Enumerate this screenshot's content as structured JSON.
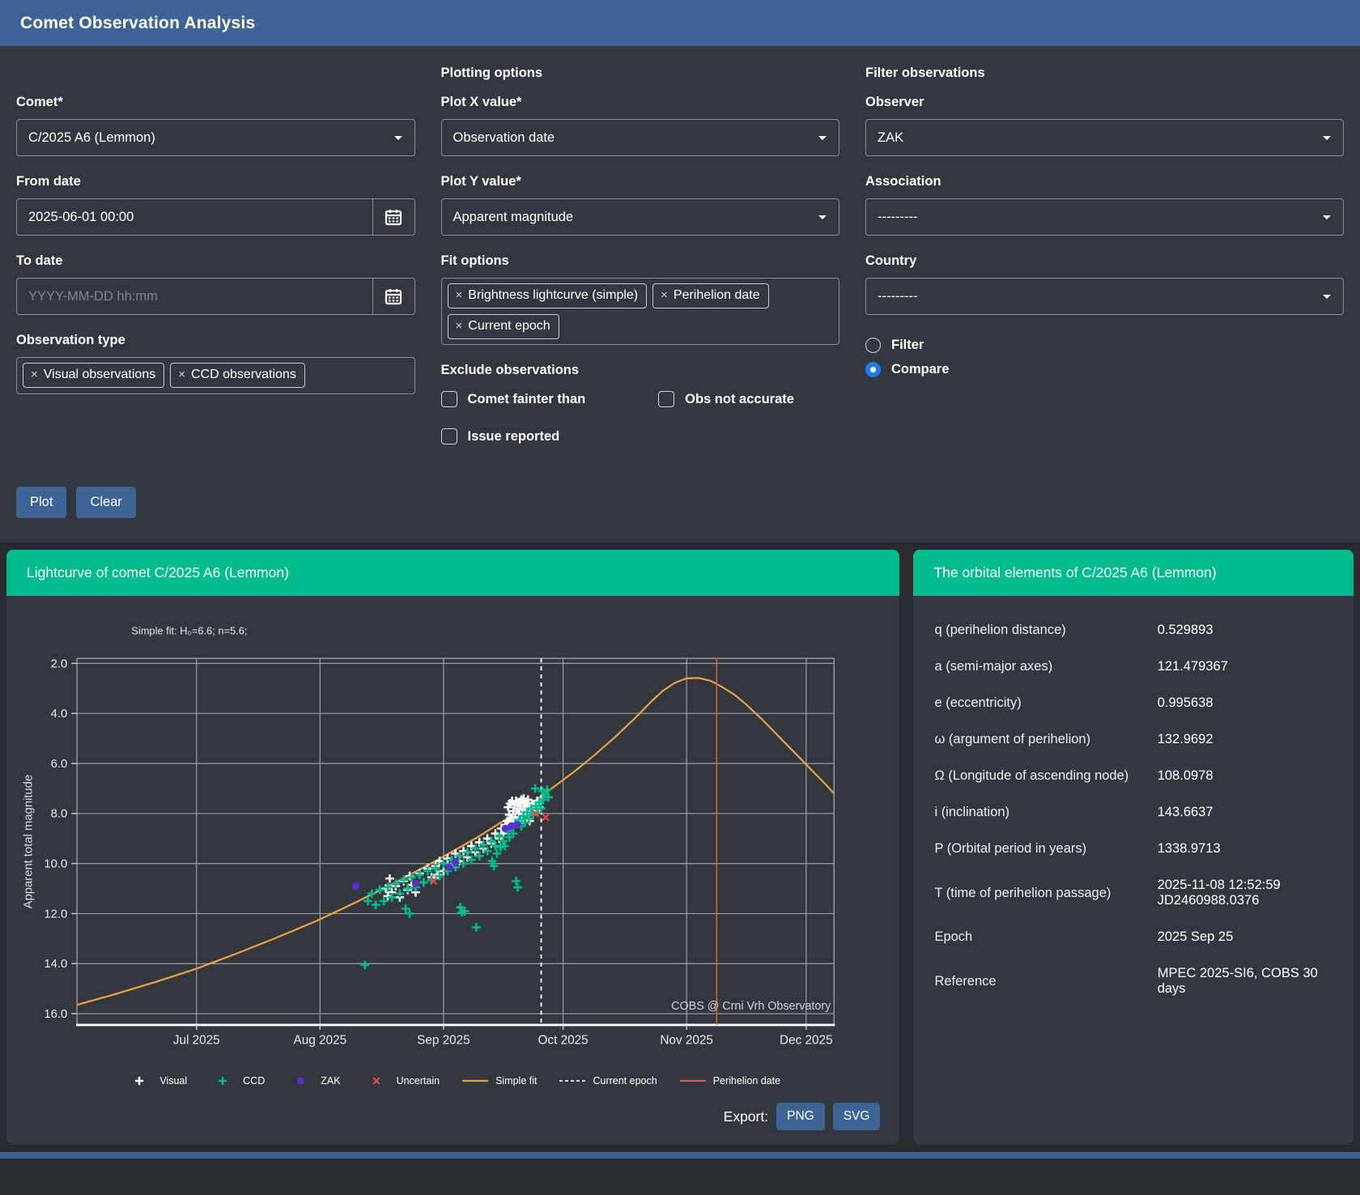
{
  "app": {
    "title": "Comet Observation Analysis"
  },
  "ui": {
    "remove_icon": "×"
  },
  "colors": {
    "header_blue": "#3d6494",
    "panel_bg": "#32383e",
    "page_bg": "#272b30",
    "card_header_green": "#00bc8c",
    "radio_selected_blue": "#1f7ce8",
    "fit_orange": "#f0a33c",
    "ccd_green": "#00bc8c",
    "zak_purple": "#5b2fd0",
    "uncertain_red": "#e74c3c",
    "perihelion_red": "#e05b4e"
  },
  "form": {
    "comet": {
      "label": "Comet*",
      "value": "C/2025 A6 (Lemmon)"
    },
    "from_date": {
      "label": "From date",
      "value": "2025-06-01 00:00"
    },
    "to_date": {
      "label": "To date",
      "placeholder": "YYYY-MM-DD hh:mm"
    },
    "observation_type": {
      "label": "Observation type",
      "tags": [
        "Visual observations",
        "CCD observations"
      ]
    },
    "plotting_heading": "Plotting options",
    "plot_x": {
      "label": "Plot X value*",
      "value": "Observation date"
    },
    "plot_y": {
      "label": "Plot Y value*",
      "value": "Apparent magnitude"
    },
    "fit_options": {
      "label": "Fit options",
      "tags": [
        "Brightness lightcurve (simple)",
        "Perihelion date",
        "Current epoch"
      ]
    },
    "exclude": {
      "label": "Exclude observations",
      "checkboxes": [
        "Comet fainter than",
        "Obs not accurate",
        "Issue reported"
      ]
    },
    "filter_heading": "Filter observations",
    "observer": {
      "label": "Observer",
      "value": "ZAK"
    },
    "association": {
      "label": "Association",
      "value": "---------"
    },
    "country": {
      "label": "Country",
      "value": "---------"
    },
    "mode": {
      "options": [
        {
          "label": "Filter",
          "selected": false
        },
        {
          "label": "Compare",
          "selected": true
        }
      ]
    },
    "plot_button": "Plot",
    "clear_button": "Clear"
  },
  "lightcurve": {
    "title": "Lightcurve of comet C/2025 A6 (Lemmon)",
    "annotation": "Simple fit: H₀=6.6; n=5.6;",
    "watermark": "COBS @ Crni Vrh Observatory",
    "export_label": "Export:",
    "export_buttons": [
      "PNG",
      "SVG"
    ]
  },
  "orbital": {
    "title": "The orbital elements of C/2025 A6 (Lemmon)",
    "rows": [
      {
        "label": "q (perihelion distance)",
        "value": "0.529893"
      },
      {
        "label": "a (semi-major axes)",
        "value": "121.479367"
      },
      {
        "label": "e (eccentricity)",
        "value": "0.995638"
      },
      {
        "label": "ω (argument of perihelion)",
        "value": "132.9692"
      },
      {
        "label": "Ω (Longitude of ascending node)",
        "value": "108.0978"
      },
      {
        "label": "i (inclination)",
        "value": "143.6637"
      },
      {
        "label": "P (Orbital period in years)",
        "value": "1338.9713"
      },
      {
        "label": "T (time of perihelion passage)",
        "value": "2025-11-08 12:52:59\nJD2460988.0376"
      },
      {
        "label": "Epoch",
        "value": "2025 Sep 25"
      },
      {
        "label": "Reference",
        "value": "MPEC 2025-SI6, COBS 30 days"
      }
    ]
  },
  "chart_data": {
    "type": "scatter",
    "x_axis": {
      "unit": "days since 2025-06-01",
      "range": [
        0,
        190
      ],
      "ticks": [
        {
          "t": 30,
          "label": "Jul 2025"
        },
        {
          "t": 61,
          "label": "Aug 2025"
        },
        {
          "t": 92,
          "label": "Sep 2025"
        },
        {
          "t": 122,
          "label": "Oct 2025"
        },
        {
          "t": 153,
          "label": "Nov 2025"
        },
        {
          "t": 183,
          "label": "Dec 2025"
        }
      ]
    },
    "y_axis": {
      "label": "Apparent total magnitude",
      "range": [
        1.8,
        16.45
      ],
      "ticks": [
        2,
        4,
        6,
        8,
        10,
        12,
        14,
        16
      ],
      "inverted": true
    },
    "series": [
      {
        "name": "Visual",
        "marker": "plus",
        "color": "#ffffff",
        "points": [
          [
            77.5,
            11.0
          ],
          [
            78,
            11.3
          ],
          [
            78.5,
            10.6
          ],
          [
            79,
            11.15
          ],
          [
            80,
            10.9
          ],
          [
            81,
            11.35
          ],
          [
            82,
            10.7
          ],
          [
            83,
            11.05
          ],
          [
            83.5,
            10.5
          ],
          [
            84,
            10.85
          ],
          [
            85,
            11.15
          ],
          [
            86,
            10.4
          ],
          [
            87,
            10.75
          ],
          [
            88,
            10.2
          ],
          [
            89,
            10.55
          ],
          [
            90,
            10.1
          ],
          [
            90.5,
            10.45
          ],
          [
            91,
            9.9
          ],
          [
            92,
            10.3
          ],
          [
            93,
            9.8
          ],
          [
            94,
            10.05
          ],
          [
            95,
            9.6
          ],
          [
            96,
            9.9
          ],
          [
            97,
            9.5
          ],
          [
            98,
            9.75
          ],
          [
            99,
            9.3
          ],
          [
            100,
            9.55
          ],
          [
            101,
            9.15
          ],
          [
            102,
            9.4
          ],
          [
            103,
            9.0
          ],
          [
            104,
            9.2
          ],
          [
            105,
            8.8
          ],
          [
            106,
            9.0
          ],
          [
            106.5,
            8.6
          ],
          [
            107,
            8.8
          ],
          [
            107.5,
            8.45
          ],
          [
            108,
            8.3
          ],
          [
            108.2,
            7.75
          ],
          [
            108.4,
            8.4
          ],
          [
            108.5,
            8.05
          ],
          [
            108.7,
            7.6
          ],
          [
            109,
            8.25
          ],
          [
            109.2,
            7.5
          ],
          [
            109.4,
            8.45
          ],
          [
            109.5,
            7.9
          ],
          [
            109.8,
            7.65
          ],
          [
            110,
            8.15
          ],
          [
            110.2,
            7.5
          ],
          [
            110.4,
            8.3
          ],
          [
            110.5,
            7.8
          ],
          [
            110.8,
            7.55
          ],
          [
            111,
            8.0
          ],
          [
            111.3,
            7.7
          ],
          [
            111.5,
            7.45
          ],
          [
            111.7,
            8.1
          ],
          [
            111.9,
            8.25
          ],
          [
            112,
            7.85
          ],
          [
            112.1,
            7.4
          ],
          [
            112.3,
            7.6
          ],
          [
            112.6,
            7.55
          ],
          [
            112.7,
            7.95
          ],
          [
            113,
            7.7
          ],
          [
            113.2,
            7.45
          ],
          [
            113.4,
            8.05
          ],
          [
            113.6,
            8.3
          ],
          [
            113.8,
            7.8
          ],
          [
            114.2,
            7.6
          ],
          [
            114.6,
            7.9
          ],
          [
            115,
            7.65
          ],
          [
            115.5,
            7.5
          ],
          [
            116,
            7.75
          ]
        ]
      },
      {
        "name": "CCD",
        "marker": "plus",
        "color": "#00bc8c",
        "points": [
          [
            72.3,
            14.05
          ],
          [
            73,
            11.5
          ],
          [
            74,
            11.2
          ],
          [
            75,
            11.65
          ],
          [
            76,
            11.05
          ],
          [
            77,
            11.5
          ],
          [
            78,
            10.95
          ],
          [
            79,
            11.35
          ],
          [
            80,
            10.8
          ],
          [
            81,
            11.2
          ],
          [
            82,
            10.65
          ],
          [
            82.5,
            11.8
          ],
          [
            83,
            11.0
          ],
          [
            83.5,
            12.0
          ],
          [
            84,
            10.55
          ],
          [
            85,
            10.95
          ],
          [
            86,
            10.45
          ],
          [
            87,
            10.75
          ],
          [
            88,
            10.3
          ],
          [
            89,
            10.65
          ],
          [
            90,
            10.2
          ],
          [
            91,
            10.5
          ],
          [
            92,
            10.0
          ],
          [
            93,
            10.3
          ],
          [
            94,
            9.85
          ],
          [
            95,
            10.15
          ],
          [
            96,
            9.7
          ],
          [
            96.2,
            11.75
          ],
          [
            96.6,
            11.95
          ],
          [
            97,
            10.0
          ],
          [
            97.3,
            11.9
          ],
          [
            98,
            9.55
          ],
          [
            99,
            9.85
          ],
          [
            100,
            9.4
          ],
          [
            100.2,
            12.55
          ],
          [
            101,
            9.7
          ],
          [
            102,
            9.25
          ],
          [
            103,
            9.5
          ],
          [
            104,
            9.1
          ],
          [
            104.2,
            9.9
          ],
          [
            104.6,
            10.1
          ],
          [
            105,
            9.3
          ],
          [
            105.4,
            9.6
          ],
          [
            106,
            8.9
          ],
          [
            106.3,
            9.35
          ],
          [
            107,
            9.1
          ],
          [
            107.4,
            9.3
          ],
          [
            108,
            8.7
          ],
          [
            108.5,
            8.95
          ],
          [
            109,
            8.55
          ],
          [
            109.5,
            8.8
          ],
          [
            110,
            8.4
          ],
          [
            110.2,
            10.7
          ],
          [
            110.6,
            10.95
          ],
          [
            111,
            8.25
          ],
          [
            111.5,
            8.5
          ],
          [
            112,
            8.1
          ],
          [
            112.5,
            8.35
          ],
          [
            113,
            7.95
          ],
          [
            113.5,
            8.2
          ],
          [
            114,
            7.8
          ],
          [
            114.5,
            8.05
          ],
          [
            115,
            7.0
          ],
          [
            115.2,
            7.7
          ],
          [
            115.6,
            7.95
          ],
          [
            116,
            7.55
          ],
          [
            116.5,
            7.8
          ],
          [
            116.8,
            7.1
          ],
          [
            117,
            7.45
          ],
          [
            117.5,
            7.2
          ],
          [
            118,
            7.05
          ],
          [
            118.3,
            7.35
          ]
        ]
      },
      {
        "name": "ZAK",
        "marker": "circle",
        "color": "#5b2fd0",
        "points": [
          [
            70,
            10.9
          ],
          [
            85,
            10.8
          ],
          [
            93.5,
            10.15
          ],
          [
            95,
            9.95
          ],
          [
            107.5,
            8.6
          ],
          [
            109,
            8.5
          ],
          [
            110.5,
            8.45
          ]
        ]
      },
      {
        "name": "Uncertain",
        "marker": "x",
        "color": "#e74c3c",
        "points": [
          [
            89.5,
            10.7
          ],
          [
            115,
            8.0
          ],
          [
            117.6,
            8.15
          ]
        ]
      }
    ],
    "fit_line": {
      "name": "Simple fit",
      "color": "#f0a33c",
      "points": [
        [
          0,
          15.65
        ],
        [
          10,
          15.2
        ],
        [
          20,
          14.72
        ],
        [
          30,
          14.2
        ],
        [
          40,
          13.6
        ],
        [
          50,
          12.97
        ],
        [
          60,
          12.3
        ],
        [
          70,
          11.55
        ],
        [
          80,
          10.75
        ],
        [
          90,
          9.9
        ],
        [
          100,
          9.0
        ],
        [
          110,
          8.0
        ],
        [
          115,
          7.48
        ],
        [
          120,
          6.9
        ],
        [
          125,
          6.3
        ],
        [
          130,
          5.65
        ],
        [
          135,
          4.95
        ],
        [
          140,
          4.2
        ],
        [
          144,
          3.55
        ],
        [
          147,
          3.1
        ],
        [
          150,
          2.78
        ],
        [
          153,
          2.6
        ],
        [
          156,
          2.58
        ],
        [
          159,
          2.7
        ],
        [
          162,
          2.95
        ],
        [
          165,
          3.25
        ],
        [
          168,
          3.65
        ],
        [
          172,
          4.25
        ],
        [
          176,
          4.9
        ],
        [
          180,
          5.55
        ],
        [
          184,
          6.2
        ],
        [
          188,
          6.85
        ],
        [
          190,
          7.2
        ]
      ]
    },
    "vlines": [
      {
        "name": "Current epoch",
        "style": "dashed",
        "color": "#f2f4f5",
        "x": 116.5
      },
      {
        "name": "Perihelion date",
        "style": "solid",
        "color": "#e05b4e",
        "x": 160.54
      }
    ],
    "legend": [
      {
        "label": "Visual",
        "marker": "plus",
        "color": "#ffffff"
      },
      {
        "label": "CCD",
        "marker": "plus",
        "color": "#00bc8c"
      },
      {
        "label": "ZAK",
        "marker": "circle",
        "color": "#5b2fd0"
      },
      {
        "label": "Uncertain",
        "marker": "x",
        "color": "#e74c3c"
      },
      {
        "label": "Simple fit",
        "marker": "line",
        "color": "#f0a33c"
      },
      {
        "label": "Current epoch",
        "marker": "dashed",
        "color": "#d8dcdf"
      },
      {
        "label": "Perihelion date",
        "marker": "line",
        "color": "#e05b4e"
      }
    ]
  }
}
